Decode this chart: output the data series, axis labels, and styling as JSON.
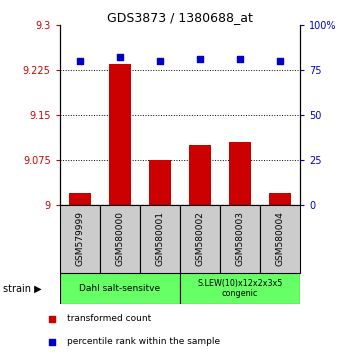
{
  "title": "GDS3873 / 1380688_at",
  "samples": [
    "GSM579999",
    "GSM580000",
    "GSM580001",
    "GSM580002",
    "GSM580003",
    "GSM580004"
  ],
  "red_values": [
    9.02,
    9.235,
    9.075,
    9.1,
    9.105,
    9.02
  ],
  "blue_values": [
    80,
    82,
    80,
    81,
    81,
    80
  ],
  "ylim_left": [
    9.0,
    9.3
  ],
  "ylim_right": [
    0,
    100
  ],
  "yticks_left": [
    9.0,
    9.075,
    9.15,
    9.225,
    9.3
  ],
  "yticks_right": [
    0,
    25,
    50,
    75,
    100
  ],
  "ytick_labels_left": [
    "9",
    "9.075",
    "9.15",
    "9.225",
    "9.3"
  ],
  "ytick_labels_right": [
    "0",
    "25",
    "50",
    "75",
    "100%"
  ],
  "bar_baseline": 9.0,
  "bar_color": "#cc0000",
  "dot_color": "#0000cc",
  "group1_label": "Dahl salt-sensitve",
  "group2_label": "S.LEW(10)x12x2x3x5\ncongenic",
  "group1_indices": [
    0,
    1,
    2
  ],
  "group2_indices": [
    3,
    4,
    5
  ],
  "group_color": "#66ff66",
  "sample_area_color": "#cccccc",
  "legend_red_label": "transformed count",
  "legend_blue_label": "percentile rank within the sample",
  "strain_label": "strain"
}
